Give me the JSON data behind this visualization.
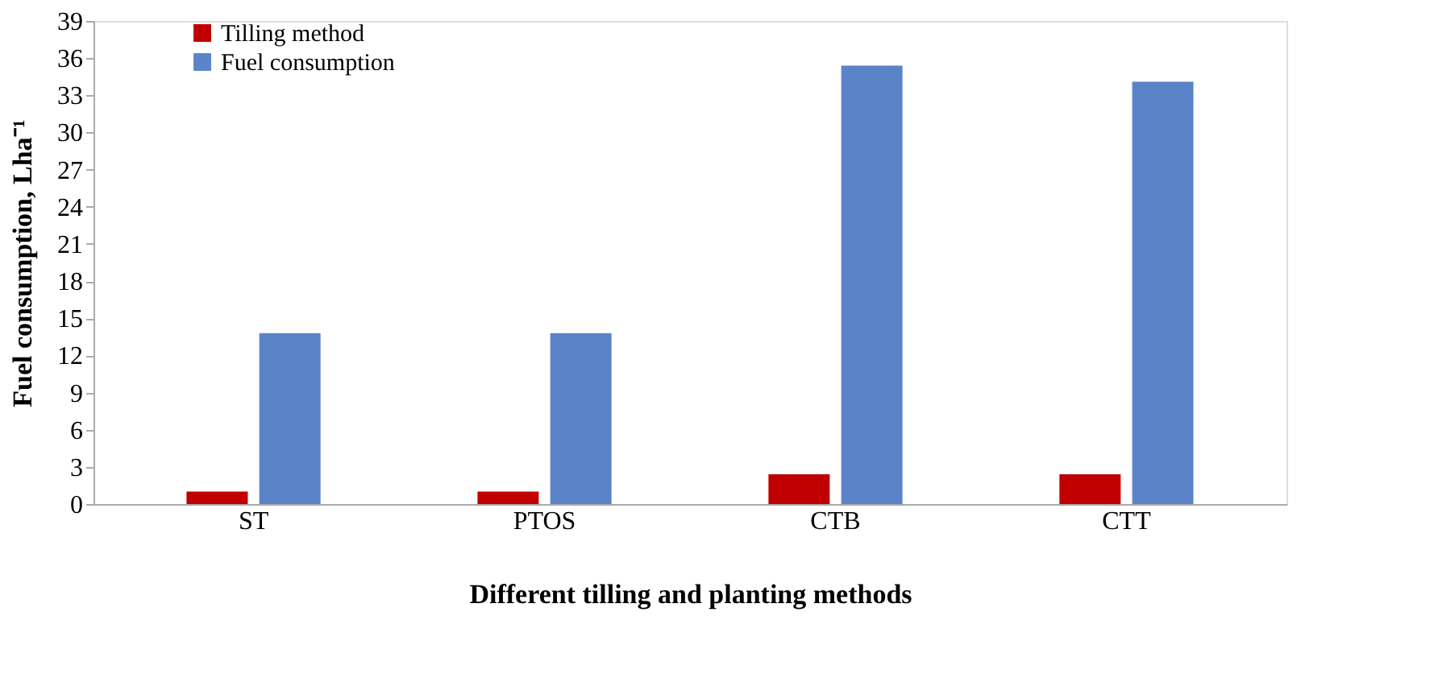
{
  "chart_data": {
    "type": "bar",
    "xlabel": "Different tilling and planting methods",
    "ylabel": "Fuel consumption, Lha⁻¹",
    "categories": [
      "ST",
      "PTOS",
      "CTB",
      "CTT"
    ],
    "series": [
      {
        "name": "Tilling method",
        "color": "#c00000",
        "values": [
          1.0,
          1.0,
          2.4,
          2.4
        ]
      },
      {
        "name": "Fuel consumption",
        "color": "#5b84c8",
        "values": [
          13.8,
          13.8,
          35.4,
          34.1
        ]
      }
    ],
    "ylim": [
      0,
      39
    ],
    "yticks": [
      0,
      3,
      6,
      9,
      12,
      15,
      18,
      21,
      24,
      27,
      30,
      33,
      36,
      39
    ],
    "grid": false,
    "legend": "top left"
  }
}
